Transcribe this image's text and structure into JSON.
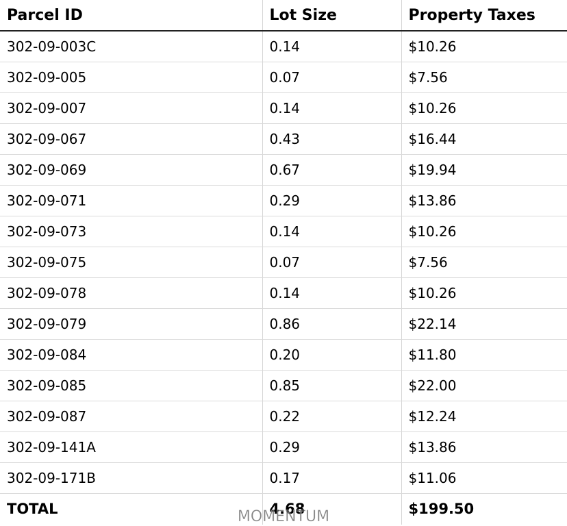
{
  "table": {
    "headers": [
      "Parcel ID",
      "Lot Size",
      "Property Taxes"
    ],
    "rows": [
      [
        "302-09-003C",
        "0.14",
        "$10.26"
      ],
      [
        "302-09-005",
        "0.07",
        "$7.56"
      ],
      [
        "302-09-007",
        "0.14",
        "$10.26"
      ],
      [
        "302-09-067",
        "0.43",
        "$16.44"
      ],
      [
        "302-09-069",
        "0.67",
        "$19.94"
      ],
      [
        "302-09-071",
        "0.29",
        "$13.86"
      ],
      [
        "302-09-073",
        "0.14",
        "$10.26"
      ],
      [
        "302-09-075",
        "0.07",
        "$7.56"
      ],
      [
        "302-09-078",
        "0.14",
        "$10.26"
      ],
      [
        "302-09-079",
        "0.86",
        "$22.14"
      ],
      [
        "302-09-084",
        "0.20",
        "$11.80"
      ],
      [
        "302-09-085",
        "0.85",
        "$22.00"
      ],
      [
        "302-09-087",
        "0.22",
        "$12.24"
      ],
      [
        "302-09-141A",
        "0.29",
        "$13.86"
      ],
      [
        "302-09-171B",
        "0.17",
        "$11.06"
      ]
    ],
    "total": [
      "TOTAL",
      "4.68",
      "$199.50"
    ]
  },
  "watermark": "MOMENTUM"
}
